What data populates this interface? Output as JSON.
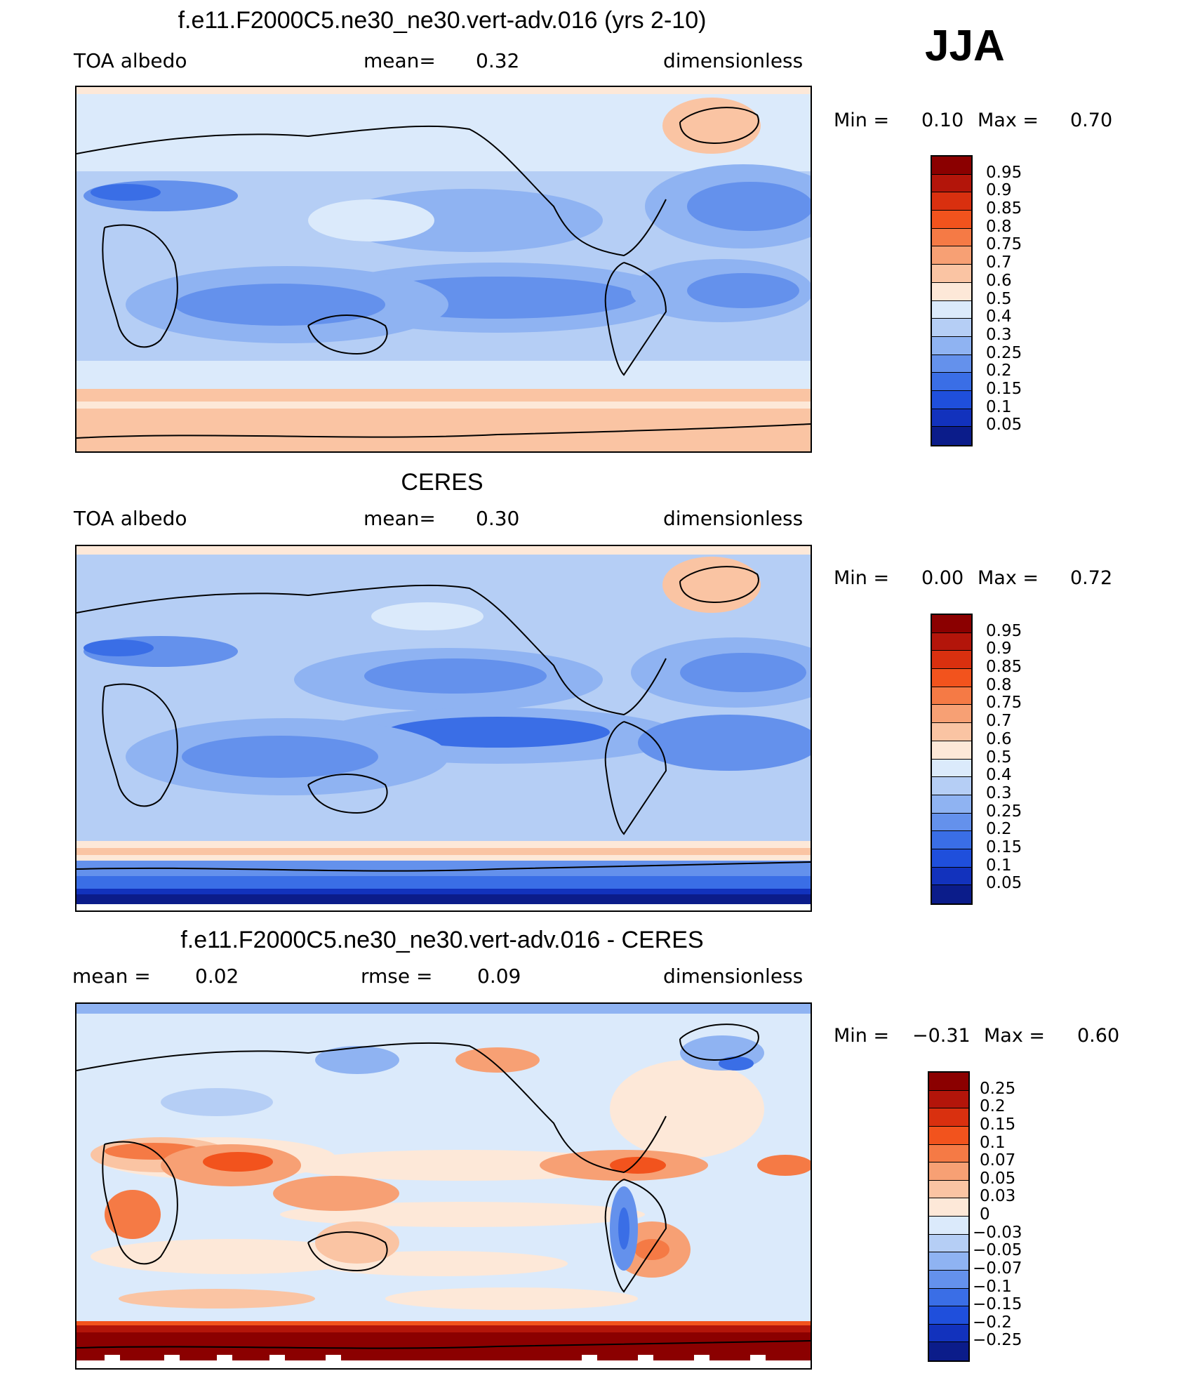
{
  "season": "JJA",
  "panels": [
    {
      "id": "model",
      "title": "f.e11.F2000C5.ne30_ne30.vert-adv.016 (yrs 2-10)",
      "left_label": "TOA albedo",
      "center_label": "mean=",
      "center_value": "0.32",
      "right_label": "dimensionless",
      "min_label": "Min =",
      "min_value": "0.10",
      "max_label": "Max =",
      "max_value": "0.70"
    },
    {
      "id": "obs",
      "title": "CERES",
      "left_label": "TOA albedo",
      "center_label": "mean=",
      "center_value": "0.30",
      "right_label": "dimensionless",
      "min_label": "Min =",
      "min_value": "0.00",
      "max_label": "Max =",
      "max_value": "0.72"
    },
    {
      "id": "diff",
      "title": "f.e11.F2000C5.ne30_ne30.vert-adv.016 - CERES",
      "left_label": "mean =",
      "left_value": "0.02",
      "center_label": "rmse =",
      "center_value": "0.09",
      "right_label": "dimensionless",
      "min_label": "Min =",
      "min_value": "−0.31",
      "max_label": "Max =",
      "max_value": "0.60"
    }
  ],
  "colorbars": {
    "albedo": {
      "labels": [
        "0.95",
        "0.9",
        "0.85",
        "0.8",
        "0.75",
        "0.7",
        "0.6",
        "0.5",
        "0.4",
        "0.3",
        "0.25",
        "0.2",
        "0.15",
        "0.1",
        "0.05"
      ],
      "colors": [
        "#8b0000",
        "#b3150a",
        "#d9300f",
        "#f2531d",
        "#f57a45",
        "#f7a074",
        "#fac4a3",
        "#fde8d8",
        "#dbeafb",
        "#b5cef5",
        "#8fb3f2",
        "#6491ec",
        "#3a6ee6",
        "#1f4fdc",
        "#1232bd",
        "#0b1c8a"
      ]
    },
    "diff": {
      "labels": [
        "0.25",
        "0.2",
        "0.15",
        "0.1",
        "0.07",
        "0.05",
        "0.03",
        "0",
        "−0.03",
        "−0.05",
        "−0.07",
        "−0.1",
        "−0.15",
        "−0.2",
        "−0.25"
      ],
      "colors": [
        "#8b0000",
        "#b3150a",
        "#d9300f",
        "#f2531d",
        "#f57a45",
        "#f7a074",
        "#fac4a3",
        "#fde8d8",
        "#dbeafb",
        "#b5cef5",
        "#8fb3f2",
        "#6491ec",
        "#3a6ee6",
        "#1f4fdc",
        "#1232bd",
        "#0b1c8a"
      ]
    }
  }
}
